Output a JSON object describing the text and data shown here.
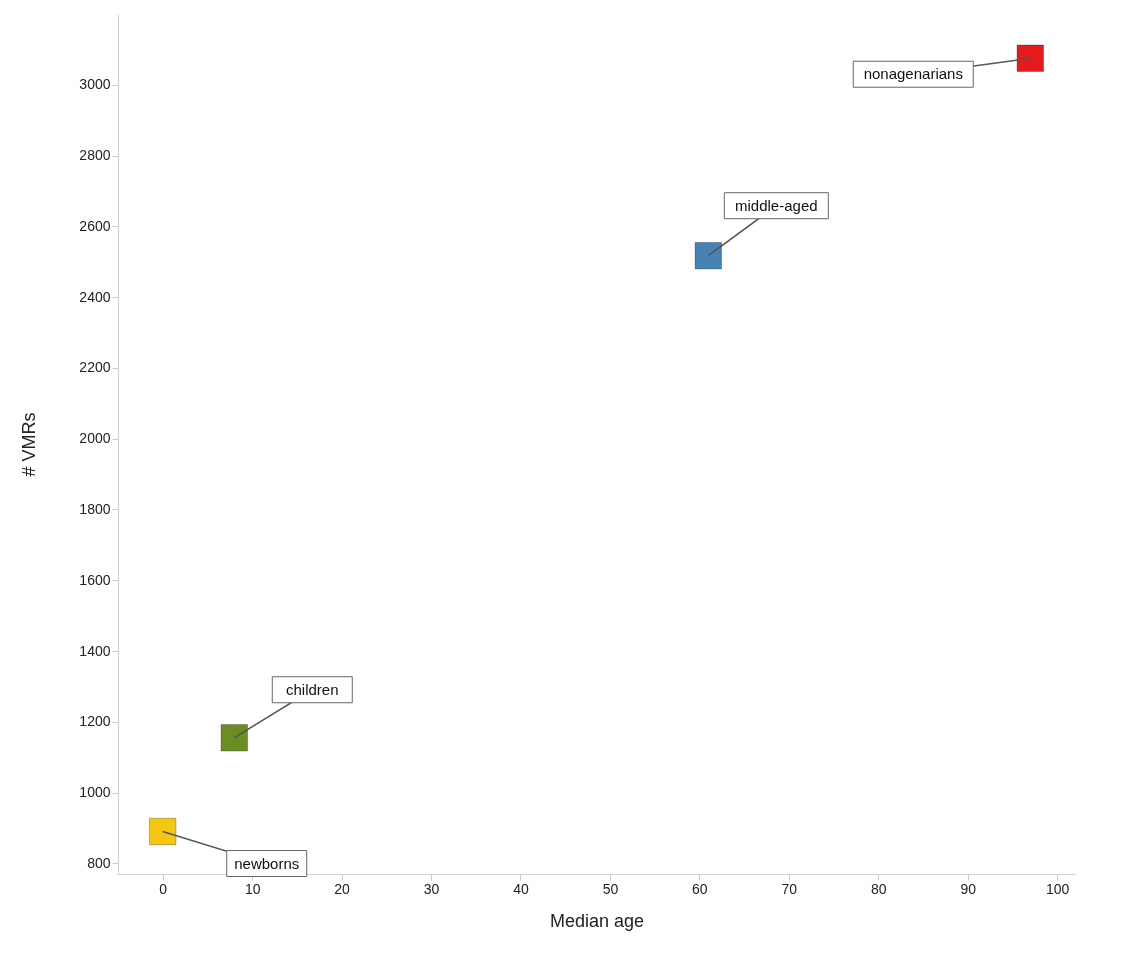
{
  "chart_data": {
    "type": "scatter",
    "xlabel": "Median age",
    "ylabel": "# VMRs",
    "xlim": [
      -5,
      102
    ],
    "ylim": [
      770,
      3200
    ],
    "xticks": [
      0,
      10,
      20,
      30,
      40,
      50,
      60,
      70,
      80,
      90,
      100
    ],
    "yticks": [
      800,
      1000,
      1200,
      1400,
      1600,
      1800,
      2000,
      2200,
      2400,
      2600,
      2800,
      3000
    ],
    "grid": false,
    "legend": false,
    "marker": "square",
    "series": [
      {
        "name": "newborns",
        "color": "#f5c710",
        "x": [
          0
        ],
        "values": [
          890
        ]
      },
      {
        "name": "children",
        "color": "#6b8e23",
        "x": [
          8
        ],
        "values": [
          1155
        ]
      },
      {
        "name": "middle-aged",
        "color": "#4682b4",
        "x": [
          61
        ],
        "values": [
          2517
        ]
      },
      {
        "name": "nonagenarians",
        "color": "#e41a1c",
        "x": [
          97
        ],
        "values": [
          3075
        ]
      }
    ]
  }
}
